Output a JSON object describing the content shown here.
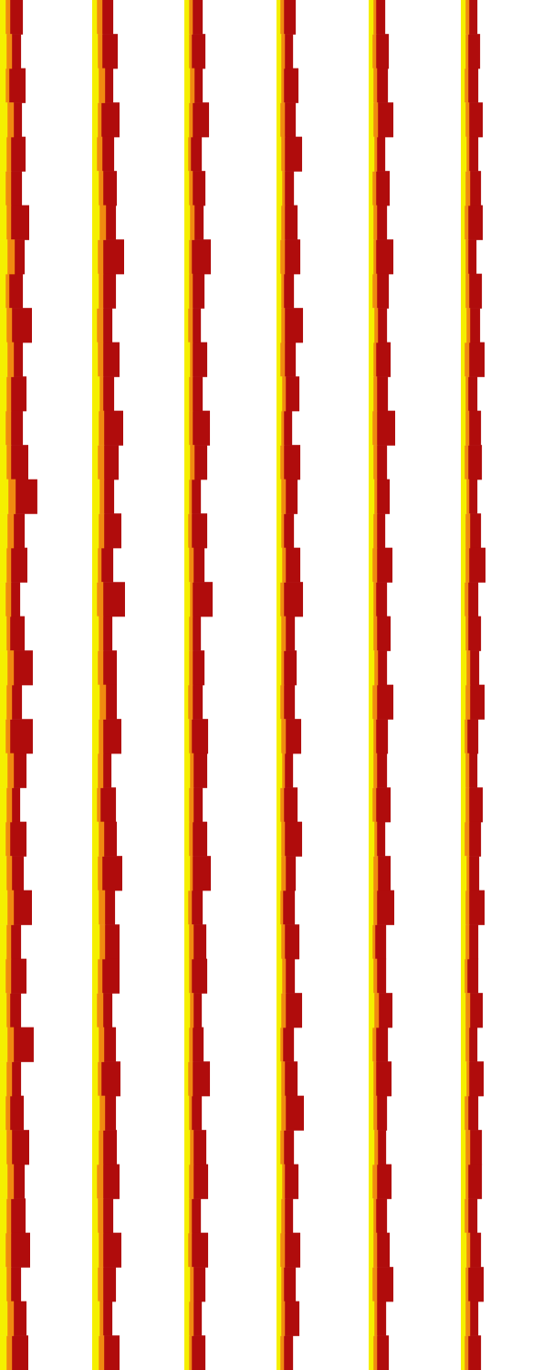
{
  "chart_data": [
    {
      "type": "bar",
      "orientation": "horizontal",
      "stacked": true,
      "grid": false,
      "tick_labels": false,
      "xlim": [
        0,
        100
      ],
      "series": [
        {
          "color": "#f5ef00",
          "values": [
            6,
            7,
            6,
            8,
            7,
            6,
            7,
            8,
            6,
            7,
            8,
            7,
            6,
            7,
            9,
            8,
            7,
            6,
            7,
            8,
            7,
            6,
            8,
            7,
            6,
            7,
            8,
            7,
            6,
            7,
            8,
            7,
            6,
            7,
            8,
            7,
            6,
            7,
            8,
            7
          ]
        },
        {
          "color": "#f08a10",
          "values": [
            5,
            6,
            4,
            7,
            5,
            6,
            5,
            8,
            4,
            6,
            7,
            5,
            6,
            5,
            8,
            7,
            5,
            6,
            4,
            7,
            6,
            5,
            7,
            6,
            5,
            6,
            7,
            5,
            6,
            4,
            7,
            6,
            5,
            6,
            7,
            5,
            6,
            5,
            7,
            6
          ]
        },
        {
          "color": "#b00c0c",
          "values": [
            14,
            10,
            18,
            9,
            16,
            12,
            20,
            11,
            15,
            22,
            10,
            17,
            13,
            19,
            24,
            12,
            18,
            10,
            16,
            21,
            11,
            25,
            14,
            9,
            18,
            13,
            20,
            11,
            17,
            12,
            22,
            10,
            15,
            19,
            12,
            16,
            21,
            11,
            14,
            18
          ]
        }
      ]
    },
    {
      "type": "bar",
      "orientation": "horizontal",
      "stacked": true,
      "grid": false,
      "tick_labels": false,
      "xlim": [
        0,
        100
      ],
      "series": [
        {
          "color": "#f5ef00",
          "values": [
            5,
            6,
            7,
            6,
            5,
            7,
            8,
            6,
            7,
            5,
            6,
            8,
            7,
            6,
            8,
            7,
            6,
            5,
            7,
            6,
            8,
            7,
            6,
            5,
            7,
            6,
            7,
            8,
            6,
            5,
            7,
            6,
            8,
            7,
            5,
            6,
            7,
            6,
            8,
            7
          ]
        },
        {
          "color": "#f08a10",
          "values": [
            6,
            5,
            7,
            4,
            6,
            5,
            7,
            6,
            5,
            7,
            6,
            4,
            6,
            7,
            5,
            6,
            4,
            7,
            5,
            6,
            7,
            5,
            6,
            4,
            6,
            5,
            7,
            6,
            5,
            7,
            6,
            4,
            6,
            5,
            7,
            6,
            5,
            6,
            4,
            6
          ]
        },
        {
          "color": "#b00c0c",
          "values": [
            12,
            17,
            9,
            20,
            13,
            15,
            11,
            23,
            14,
            10,
            18,
            12,
            21,
            16,
            11,
            19,
            13,
            24,
            10,
            15,
            12,
            20,
            9,
            17,
            14,
            22,
            11,
            16,
            19,
            10,
            13,
            21,
            12,
            15,
            18,
            11,
            20,
            14,
            10,
            17
          ]
        }
      ]
    },
    {
      "type": "bar",
      "orientation": "horizontal",
      "stacked": true,
      "grid": false,
      "tick_labels": false,
      "xlim": [
        0,
        100
      ],
      "series": [
        {
          "color": "#f5ef00",
          "values": [
            5,
            5,
            6,
            5,
            4,
            5,
            6,
            5,
            5,
            4,
            6,
            5,
            5,
            6,
            5,
            4,
            5,
            6,
            5,
            5,
            4,
            5,
            6,
            5,
            5,
            6,
            4,
            5,
            5,
            6,
            5,
            4,
            5,
            6,
            5,
            5,
            4,
            6,
            5,
            5
          ]
        },
        {
          "color": "#f08a10",
          "values": [
            4,
            3,
            5,
            4,
            3,
            4,
            5,
            3,
            4,
            5,
            3,
            4,
            4,
            5,
            3,
            4,
            5,
            3,
            4,
            4,
            5,
            3,
            4,
            5,
            4,
            3,
            4,
            5,
            3,
            4,
            4,
            5,
            3,
            4,
            5,
            3,
            4,
            4,
            5,
            3
          ]
        },
        {
          "color": "#b00c0c",
          "values": [
            11,
            15,
            9,
            18,
            12,
            14,
            10,
            21,
            13,
            9,
            16,
            11,
            19,
            14,
            10,
            17,
            12,
            22,
            9,
            13,
            11,
            18,
            15,
            10,
            16,
            20,
            12,
            14,
            17,
            9,
            12,
            19,
            11,
            14,
            16,
            10,
            18,
            13,
            9,
            15
          ]
        }
      ]
    },
    {
      "type": "bar",
      "orientation": "horizontal",
      "stacked": true,
      "grid": false,
      "tick_labels": false,
      "xlim": [
        0,
        100
      ],
      "series": [
        {
          "color": "#f5ef00",
          "values": [
            4,
            5,
            5,
            4,
            5,
            6,
            5,
            4,
            5,
            5,
            4,
            6,
            5,
            4,
            5,
            5,
            6,
            4,
            5,
            5,
            4,
            5,
            6,
            4,
            5,
            5,
            4,
            5,
            6,
            5,
            4,
            5,
            5,
            4,
            6,
            5,
            4,
            5,
            5,
            4
          ]
        },
        {
          "color": "#f08a10",
          "values": [
            4,
            4,
            3,
            5,
            4,
            3,
            4,
            5,
            3,
            4,
            5,
            4,
            3,
            4,
            5,
            3,
            4,
            4,
            5,
            3,
            4,
            5,
            3,
            4,
            4,
            5,
            3,
            4,
            4,
            5,
            3,
            4,
            5,
            4,
            3,
            4,
            5,
            3,
            4,
            4
          ]
        },
        {
          "color": "#b00c0c",
          "values": [
            13,
            9,
            16,
            12,
            19,
            10,
            14,
            17,
            11,
            20,
            12,
            15,
            9,
            18,
            13,
            11,
            16,
            21,
            10,
            14,
            12,
            17,
            9,
            15,
            19,
            11,
            13,
            16,
            10,
            18,
            12,
            14,
            20,
            11,
            15,
            9,
            17,
            13,
            16,
            10
          ]
        }
      ]
    },
    {
      "type": "bar",
      "orientation": "horizontal",
      "stacked": true,
      "grid": false,
      "tick_labels": false,
      "xlim": [
        0,
        100
      ],
      "series": [
        {
          "color": "#f5ef00",
          "values": [
            5,
            4,
            5,
            5,
            6,
            4,
            5,
            5,
            4,
            6,
            5,
            5,
            4,
            5,
            6,
            5,
            4,
            5,
            5,
            6,
            4,
            5,
            5,
            4,
            6,
            5,
            5,
            4,
            5,
            6,
            4,
            5,
            5,
            6,
            4,
            5,
            5,
            4,
            6,
            5
          ]
        },
        {
          "color": "#f08a10",
          "values": [
            3,
            4,
            4,
            5,
            3,
            4,
            4,
            3,
            5,
            4,
            3,
            4,
            5,
            4,
            3,
            4,
            5,
            3,
            4,
            4,
            5,
            3,
            4,
            4,
            3,
            5,
            4,
            3,
            4,
            5,
            4,
            3,
            4,
            4,
            5,
            3,
            4,
            5,
            3,
            4
          ]
        },
        {
          "color": "#b00c0c",
          "values": [
            10,
            14,
            12,
            17,
            9,
            15,
            11,
            19,
            13,
            10,
            16,
            12,
            20,
            11,
            14,
            9,
            17,
            12,
            15,
            10,
            18,
            13,
            11,
            16,
            9,
            14,
            19,
            12,
            10,
            15,
            13,
            17,
            11,
            9,
            16,
            12,
            14,
            18,
            10,
            13
          ]
        }
      ]
    },
    {
      "type": "bar",
      "orientation": "horizontal",
      "stacked": true,
      "grid": false,
      "tick_labels": false,
      "xlim": [
        0,
        100
      ],
      "series": [
        {
          "color": "#f5ef00",
          "values": [
            5,
            5,
            4,
            5,
            6,
            5,
            4,
            5,
            5,
            6,
            4,
            5,
            5,
            4,
            6,
            5,
            5,
            4,
            5,
            6,
            5,
            4,
            5,
            5,
            4,
            6,
            5,
            5,
            4,
            5,
            5,
            6,
            4,
            5,
            5,
            4,
            6,
            5,
            5,
            4
          ]
        },
        {
          "color": "#f08a10",
          "values": [
            4,
            3,
            4,
            4,
            3,
            5,
            4,
            3,
            4,
            4,
            5,
            3,
            4,
            4,
            3,
            5,
            4,
            4,
            3,
            4,
            5,
            3,
            4,
            4,
            5,
            3,
            4,
            4,
            3,
            5,
            4,
            3,
            4,
            5,
            3,
            4,
            4,
            3,
            5,
            4
          ]
        },
        {
          "color": "#b00c0c",
          "values": [
            9,
            13,
            11,
            15,
            10,
            12,
            16,
            9,
            14,
            11,
            17,
            10,
            13,
            15,
            9,
            12,
            18,
            11,
            14,
            10,
            16,
            12,
            9,
            15,
            13,
            11,
            17,
            10,
            12,
            14,
            9,
            16,
            11,
            13,
            15,
            10,
            12,
            17,
            9,
            14
          ]
        }
      ]
    }
  ]
}
